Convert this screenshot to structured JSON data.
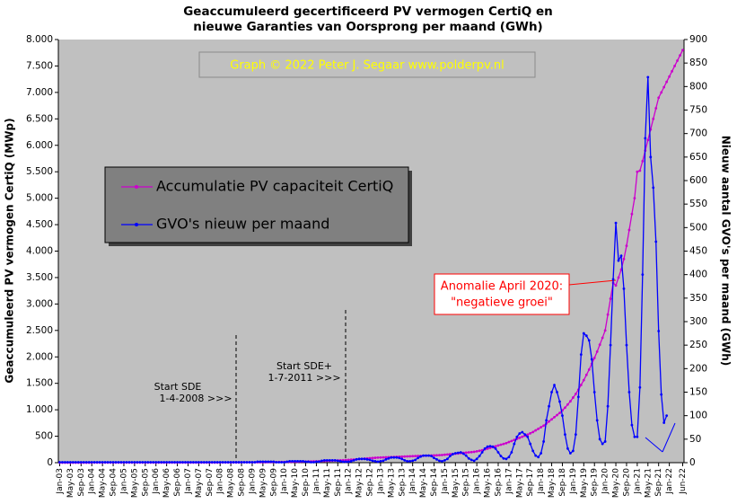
{
  "chart_data": {
    "type": "line",
    "title": "Geaccumuleerd  gecertificeerd  PV  vermogen  CertiQ  en",
    "subtitle": "nieuwe  Garanties  van  Oorsprong  per  maand  (GWh)",
    "y_label": "Geaccumuleerd PV vermogen CertiQ (MWp)",
    "y2_label": "Nieuw aantal GVO's per maand (GWh)",
    "annotations": {
      "credit": "Graph  ©  2022  Peter  J.  Segaar   www.polderpv.nl",
      "anomaly": [
        "Anomalie  April 2020:",
        "\"negatieve groei\""
      ],
      "sde": [
        "Start SDE",
        "1-4-2008   >>>"
      ],
      "sde_plus": [
        "Start SDE+",
        "1-7-2011   >>>"
      ]
    },
    "categories": [
      "Jan-03",
      null,
      null,
      null,
      "May-03",
      null,
      null,
      null,
      "Sep-03",
      null,
      null,
      null,
      "Jan-04",
      null,
      null,
      null,
      "May-04",
      null,
      null,
      null,
      "Sep-04",
      null,
      null,
      null,
      "Jan-05",
      null,
      null,
      null,
      "May-05",
      null,
      null,
      null,
      "Sep-05",
      null,
      null,
      null,
      "Jan-06",
      null,
      null,
      null,
      "May-06",
      null,
      null,
      null,
      "Sep-06",
      null,
      null,
      null,
      "Jan-07",
      null,
      null,
      null,
      "May-07",
      null,
      null,
      null,
      "Sep-07",
      null,
      null,
      null,
      "Jan-08",
      null,
      null,
      null,
      "May-08",
      null,
      null,
      null,
      "Sep-08",
      null,
      null,
      null,
      "Jan-09",
      null,
      null,
      null,
      "May-09",
      null,
      null,
      null,
      "Sep-09",
      null,
      null,
      null,
      "Jan-10",
      null,
      null,
      null,
      "May-10",
      null,
      null,
      null,
      "Sep-10",
      null,
      null,
      null,
      "Jan-11",
      null,
      null,
      null,
      "May-11",
      null,
      null,
      null,
      "Sep-11",
      null,
      null,
      null,
      "Jan-12",
      null,
      null,
      null,
      "May-12",
      null,
      null,
      null,
      "Sep-12",
      null,
      null,
      null,
      "Jan-13",
      null,
      null,
      null,
      "May-13",
      null,
      null,
      null,
      "Sep-13",
      null,
      null,
      null,
      "Jan-14",
      null,
      null,
      null,
      "May-14",
      null,
      null,
      null,
      "Sep-14",
      null,
      null,
      null,
      "Jan-15",
      null,
      null,
      null,
      "May-15",
      null,
      null,
      null,
      "Sep-15",
      null,
      null,
      null,
      "Jan-16",
      null,
      null,
      null,
      "May-16",
      null,
      null,
      null,
      "Sep-16",
      null,
      null,
      null,
      "Jan-17",
      null,
      null,
      null,
      "May-17",
      null,
      null,
      null,
      "Sep-17",
      null,
      null,
      null,
      "Jan-18",
      null,
      null,
      null,
      "May-18",
      null,
      null,
      null,
      "Sep-18",
      null,
      null,
      null,
      "Jan-19",
      null,
      null,
      null,
      "May-19",
      null,
      null,
      null,
      "Sep-19",
      null,
      null,
      null,
      "Jan-20",
      null,
      null,
      null,
      "May-20",
      null,
      null,
      null,
      "Sep-20",
      null,
      null,
      null,
      "Jan-21",
      null,
      null,
      null,
      "May-21",
      null,
      null,
      null,
      "Sep-21",
      null,
      null,
      null,
      "Jan-22",
      null,
      null,
      null,
      null,
      "Jun-22"
    ],
    "series": [
      {
        "name": "Accumulatie PV capaciteit CertiQ",
        "color": "#cc00cc",
        "axis": "y",
        "values": [
          1,
          1,
          1,
          1,
          1,
          1,
          1,
          1,
          1,
          1,
          1,
          1,
          2,
          2,
          2,
          2,
          2,
          2,
          2,
          2,
          2,
          2,
          2,
          2,
          2,
          2,
          2,
          2,
          2,
          2,
          2,
          2,
          2,
          2,
          2,
          2,
          3,
          3,
          3,
          3,
          3,
          3,
          3,
          3,
          3,
          3,
          3,
          3,
          3,
          3,
          3,
          3,
          3,
          3,
          3,
          3,
          3,
          3,
          3,
          3,
          4,
          4,
          4,
          4,
          5,
          5,
          5,
          5,
          6,
          6,
          6,
          6,
          7,
          7,
          8,
          8,
          9,
          9,
          10,
          10,
          11,
          11,
          12,
          12,
          13,
          14,
          15,
          16,
          17,
          18,
          19,
          20,
          21,
          22,
          23,
          24,
          26,
          28,
          30,
          32,
          34,
          36,
          38,
          40,
          42,
          44,
          46,
          48,
          52,
          56,
          60,
          64,
          68,
          72,
          76,
          80,
          84,
          88,
          92,
          96,
          98,
          100,
          102,
          104,
          106,
          108,
          110,
          112,
          114,
          116,
          118,
          120,
          122,
          124,
          126,
          128,
          130,
          132,
          134,
          136,
          138,
          140,
          142,
          145,
          150,
          155,
          160,
          165,
          170,
          175,
          180,
          185,
          190,
          195,
          200,
          205,
          215,
          225,
          235,
          250,
          265,
          280,
          295,
          310,
          325,
          340,
          355,
          370,
          390,
          410,
          430,
          450,
          470,
          490,
          510,
          530,
          555,
          580,
          610,
          640,
          670,
          700,
          740,
          780,
          820,
          860,
          900,
          940,
          990,
          1040,
          1100,
          1160,
          1230,
          1300,
          1380,
          1470,
          1560,
          1660,
          1760,
          1870,
          1980,
          2100,
          2230,
          2360,
          2500,
          2800,
          3100,
          3400,
          3350,
          3500,
          3650,
          3850,
          4100,
          4400,
          4700,
          5000,
          5500,
          5520,
          5700,
          5900,
          6100,
          6300,
          6500,
          6700,
          6900,
          7000,
          7100,
          7200,
          7300,
          7400,
          7500,
          7600,
          7700,
          7800
        ]
      },
      {
        "name": "GVO's nieuw per maand",
        "color": "#0000ff",
        "axis": "y2",
        "values": [
          1,
          1,
          1,
          1,
          1,
          1,
          1,
          1,
          1,
          1,
          1,
          1,
          1,
          1,
          1,
          1,
          1,
          1,
          1,
          1,
          1,
          1,
          1,
          1,
          1,
          1,
          1,
          1,
          1,
          1,
          1,
          1,
          1,
          1,
          1,
          1,
          1,
          1,
          1,
          1,
          1,
          1,
          1,
          1,
          1,
          1,
          1,
          1,
          1,
          1,
          1,
          1,
          1,
          1,
          1,
          1,
          1,
          1,
          1,
          1,
          1,
          1,
          1,
          1,
          1,
          1,
          1,
          1,
          1,
          1,
          1,
          1,
          1,
          1,
          2,
          2,
          2,
          2,
          2,
          2,
          2,
          1,
          1,
          1,
          1,
          2,
          3,
          3,
          3,
          3,
          3,
          3,
          2,
          2,
          1,
          1,
          2,
          2,
          4,
          5,
          5,
          5,
          5,
          5,
          4,
          3,
          2,
          2,
          2,
          3,
          5,
          7,
          8,
          8,
          8,
          7,
          6,
          4,
          3,
          2,
          3,
          4,
          7,
          9,
          11,
          11,
          11,
          10,
          8,
          5,
          3,
          3,
          4,
          6,
          10,
          13,
          15,
          15,
          15,
          14,
          10,
          7,
          4,
          3,
          5,
          8,
          14,
          18,
          20,
          21,
          22,
          19,
          15,
          9,
          6,
          4,
          8,
          14,
          22,
          30,
          34,
          35,
          34,
          30,
          22,
          14,
          9,
          8,
          12,
          22,
          40,
          55,
          62,
          65,
          60,
          55,
          40,
          25,
          15,
          12,
          20,
          45,
          90,
          120,
          150,
          165,
          150,
          130,
          100,
          60,
          30,
          20,
          25,
          60,
          140,
          230,
          275,
          270,
          260,
          220,
          150,
          90,
          50,
          40,
          45,
          120,
          250,
          390,
          510,
          430,
          440,
          370,
          250,
          150,
          80,
          55,
          55,
          160,
          400,
          690,
          820,
          650,
          585,
          470,
          280,
          145,
          85,
          100,
          null,
          null,
          null,
          null,
          null,
          null
        ]
      }
    ],
    "ylim": [
      0,
      8000
    ],
    "yticks": [
      0,
      500,
      {
        "value": 1000,
        "label": "1.000"
      },
      {
        "value": 1500,
        "label": "1.500"
      },
      {
        "value": 2000,
        "label": "2.000"
      },
      {
        "value": 2500,
        "label": "2.500"
      },
      {
        "value": 3000,
        "label": "3.000"
      },
      {
        "value": 3500,
        "label": "3.500"
      },
      {
        "value": 4000,
        "label": "4.000"
      },
      {
        "value": 4500,
        "label": "4.500"
      },
      {
        "value": 5000,
        "label": "5.000"
      },
      {
        "value": 5500,
        "label": "5.500"
      },
      {
        "value": 6000,
        "label": "6.000"
      },
      {
        "value": 6500,
        "label": "6.500"
      },
      {
        "value": 7000,
        "label": "7.000"
      },
      {
        "value": 7500,
        "label": "7.500"
      },
      {
        "value": 8000,
        "label": "8.000"
      }
    ],
    "y2lim": [
      0,
      900
    ],
    "y2ticks": [
      0,
      50,
      100,
      150,
      200,
      250,
      300,
      350,
      400,
      450,
      500,
      550,
      600,
      650,
      700,
      750,
      800,
      850,
      900
    ],
    "grid": false
  }
}
